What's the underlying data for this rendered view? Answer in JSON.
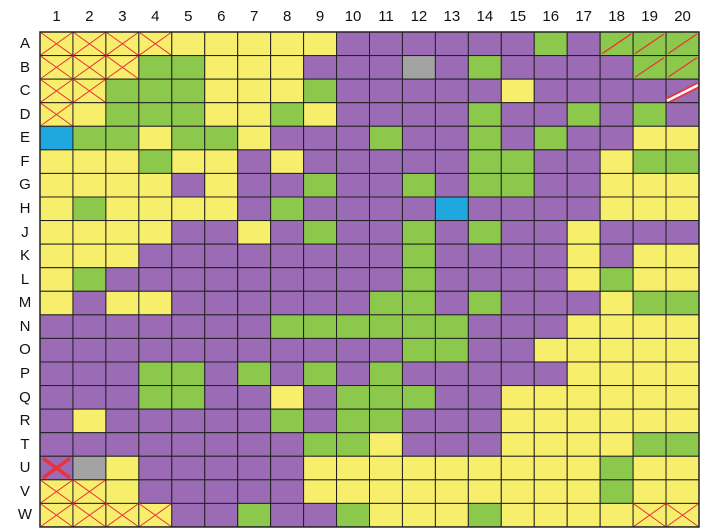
{
  "columns": [
    "1",
    "2",
    "3",
    "4",
    "5",
    "6",
    "7",
    "8",
    "9",
    "10",
    "11",
    "12",
    "13",
    "14",
    "15",
    "16",
    "17",
    "18",
    "19",
    "20"
  ],
  "rows": [
    "A",
    "B",
    "C",
    "D",
    "E",
    "F",
    "G",
    "H",
    "J",
    "K",
    "L",
    "M",
    "N",
    "O",
    "P",
    "Q",
    "R",
    "T",
    "U",
    "V",
    "W"
  ],
  "legend_codes": {
    "P": "purple",
    "G": "green",
    "Y": "yellow",
    "B": "blue",
    "S": "grey",
    "X": "yellow, crossed out",
    "D": "green, slashed"
  },
  "colors": {
    "P": "#9b6bb5",
    "G": "#8cc84b",
    "Y": "#f7ef6b",
    "B": "#1ea8df",
    "S": "#a3a3a3",
    "line": "#222222",
    "mark": "#e8333a"
  },
  "cells": [
    "XXXXYYYYYPPPPPPGPDDD",
    "XXXGGYYYPPPSPGPPPPDD",
    "XXGGGYYYGPPPPPYPPPPW",
    "XYGGGYYGYPPPPGPPGPGP",
    "BGGYGGYPPPGPPGPGPPYY",
    "YYYGYYPYPPPPPGGPPYGG",
    "YYYYPYPPGPPGPGGPPYYY",
    "YGYYYYPGPPPPBPPPPYYY",
    "YYYYPPYPGPPGPGPPYPPP",
    "YYYPPPPPPPPGPPPPYPYY",
    "YGPPPPPPPPPGPPPPYGYY",
    "YPYYPPPPPPGGPGPPPYGG",
    "PPPPPPPGGGGGGPPPYYYY",
    "PPPPPPPPPPPGGPPYYYYY",
    "PPPGGPGPGPGPPPPPYYYY",
    "PPPGGPPYPGGGPPYYYYYY",
    "PYPPPPPGPGGPPPYYYYYY",
    "PPPPPPPPGGYPPPYYYYGG",
    "RSYPPPPPYYYYYYYYYGYY",
    "XXYPPPPPYYYYYYYYYGYY",
    "XXXXPPGPPGYYYGYYYYXX"
  ],
  "cell_notes": {
    "A18": "green, single slash",
    "C20": "purple, red-white diagonal stripe",
    "U1": "purple, bold red X"
  }
}
